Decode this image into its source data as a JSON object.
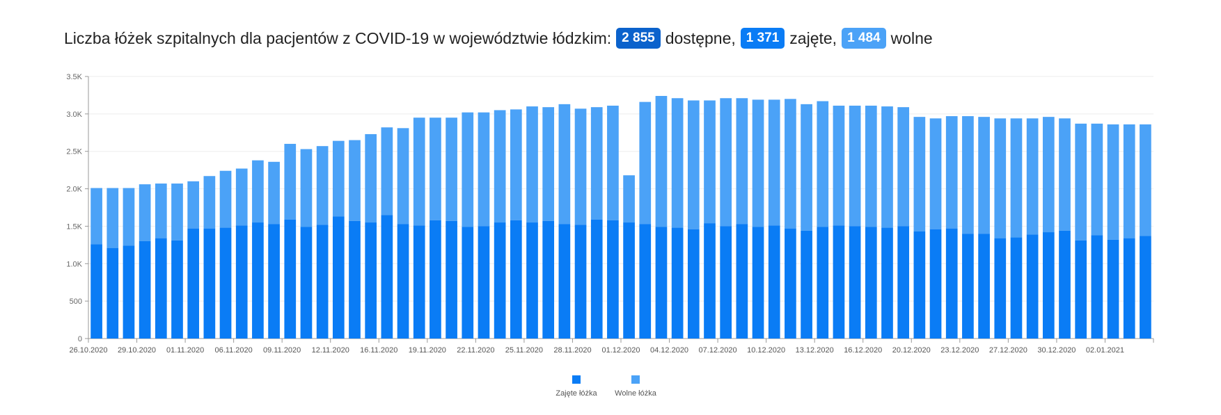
{
  "header": {
    "title_prefix": "Liczba łóżek szpitalnych dla pacjentów z COVID-19 w województwie łódzkim:",
    "available_value": "2 855",
    "available_label": "dostępne,",
    "occupied_value": "1 371",
    "occupied_label": "zajęte,",
    "free_value": "1 484",
    "free_label": "wolne"
  },
  "colors": {
    "available_badge": "#0b62cc",
    "occupied": "#0a7cf5",
    "free": "#4ba2f7",
    "axis": "#999999",
    "grid": "#eeeeee"
  },
  "chart_data": {
    "type": "bar",
    "stacked": true,
    "y_ticks": [
      "0",
      "500",
      "1.0K",
      "1.5K",
      "2.0K",
      "2.5K",
      "3.0K",
      "3.5K"
    ],
    "ylim": [
      0,
      3500
    ],
    "x_tick_labels": [
      "26.10.2020",
      "29.10.2020",
      "01.11.2020",
      "06.11.2020",
      "09.11.2020",
      "12.11.2020",
      "16.11.2020",
      "19.11.2020",
      "22.11.2020",
      "25.11.2020",
      "28.11.2020",
      "01.12.2020",
      "04.12.2020",
      "07.12.2020",
      "10.12.2020",
      "13.12.2020",
      "16.12.2020",
      "20.12.2020",
      "23.12.2020",
      "27.12.2020",
      "30.12.2020",
      "02.01.2021"
    ],
    "legend_position": "bottom-center",
    "series": [
      {
        "name": "Zajęte łóżka",
        "values": [
          1260,
          1210,
          1240,
          1300,
          1340,
          1310,
          1470,
          1470,
          1480,
          1510,
          1550,
          1530,
          1590,
          1490,
          1520,
          1630,
          1570,
          1550,
          1650,
          1530,
          1510,
          1580,
          1570,
          1490,
          1500,
          1550,
          1580,
          1550,
          1570,
          1530,
          1520,
          1590,
          1580,
          1550,
          1530,
          1490,
          1480,
          1460,
          1540,
          1500,
          1530,
          1490,
          1510,
          1470,
          1440,
          1490,
          1510,
          1500,
          1490,
          1480,
          1500,
          1430,
          1460,
          1470,
          1400,
          1400,
          1340,
          1350,
          1390,
          1420,
          1440,
          1310,
          1380,
          1320,
          1340,
          1370
        ]
      },
      {
        "name": "Wolne łóżka",
        "values": [
          750,
          800,
          770,
          760,
          730,
          760,
          630,
          700,
          760,
          760,
          830,
          830,
          1010,
          1040,
          1050,
          1010,
          1080,
          1180,
          1170,
          1280,
          1440,
          1370,
          1380,
          1530,
          1520,
          1500,
          1480,
          1550,
          1520,
          1600,
          1550,
          1500,
          1530,
          630,
          1630,
          1750,
          1730,
          1720,
          1640,
          1710,
          1680,
          1700,
          1680,
          1730,
          1690,
          1680,
          1600,
          1610,
          1620,
          1620,
          1590,
          1530,
          1480,
          1500,
          1570,
          1560,
          1600,
          1590,
          1550,
          1540,
          1500,
          1560,
          1490,
          1540,
          1520,
          1490
        ]
      }
    ]
  }
}
